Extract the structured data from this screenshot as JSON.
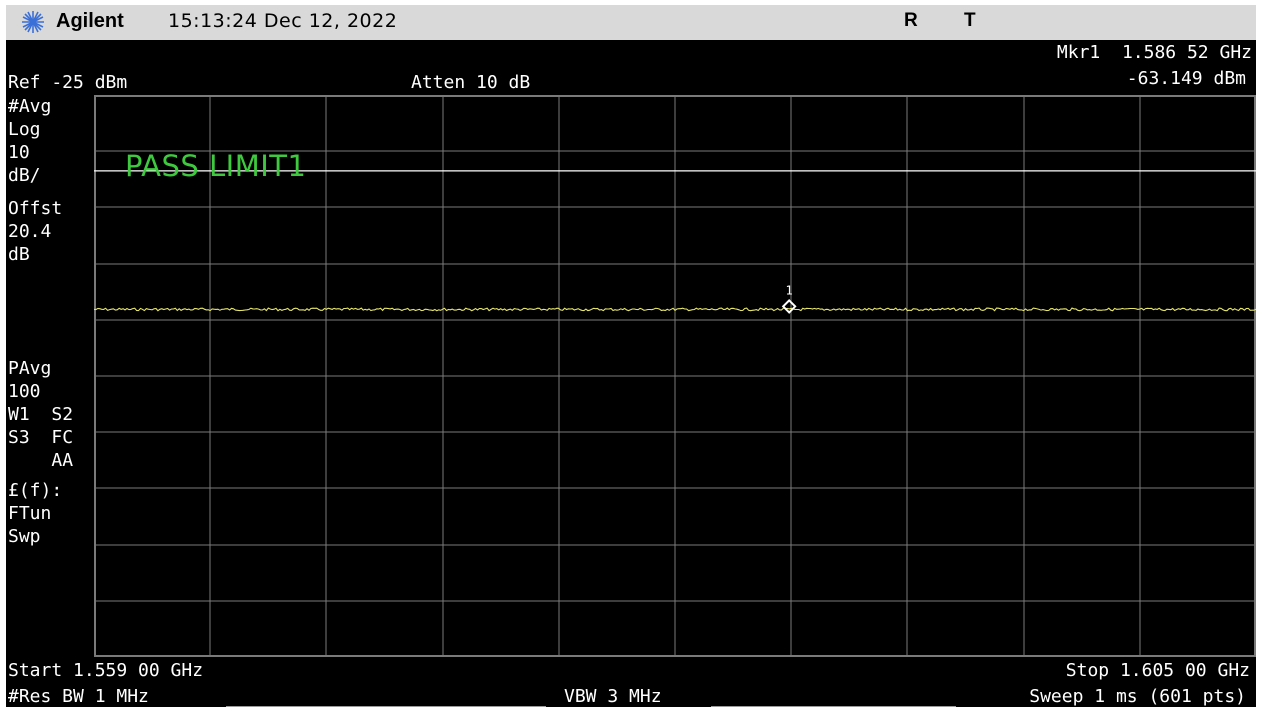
{
  "header": {
    "brand": "Agilent",
    "time": "15:13:24",
    "date": "Dec 12, 2022",
    "flag_r": "R",
    "flag_t": "T",
    "logo_icon": "agilent-spark-icon"
  },
  "marker_readout": {
    "label": "Mkr1",
    "frequency": "1.586 52 GHz",
    "amplitude": "-63.149 dBm"
  },
  "ref_level": "Ref -25 dBm",
  "attenuation": "Atten 10 dB",
  "side_panel": {
    "avg": "#Avg",
    "scale_type": "Log",
    "scale_value": "10",
    "scale_unit": "dB/",
    "offset_label": "Offst",
    "offset_value": "20.4",
    "offset_unit": "dB",
    "pavg": "PAvg",
    "pavg_count": "100",
    "w1": "W1",
    "s2": "S2",
    "s3": "S3",
    "fc": "FC",
    "aa": "AA",
    "func": "£(f):",
    "ftun": "FTun",
    "swp": "Swp"
  },
  "limit_status": "PASS LIMIT1",
  "marker_number": "1",
  "footer": {
    "start": "Start 1.559 00 GHz",
    "stop": "Stop 1.605 00 GHz",
    "res_bw": "#Res BW 1 MHz",
    "vbw": "VBW 3 MHz",
    "sweep": "Sweep 1 ms (601 pts)"
  },
  "colors": {
    "background": "#000000",
    "trace": "#e6e66a",
    "limit_line": "#ffffff",
    "pass_text": "#3ec93e",
    "grid": "#7a7a7a"
  },
  "trace": {
    "points": 601,
    "start_ghz": 1.559,
    "stop_ghz": 1.605,
    "ref_dbm": -25,
    "db_per_div": 10,
    "level_dbm": -63.15,
    "limit_dbm": -38.5,
    "marker_ghz": 1.58652
  }
}
